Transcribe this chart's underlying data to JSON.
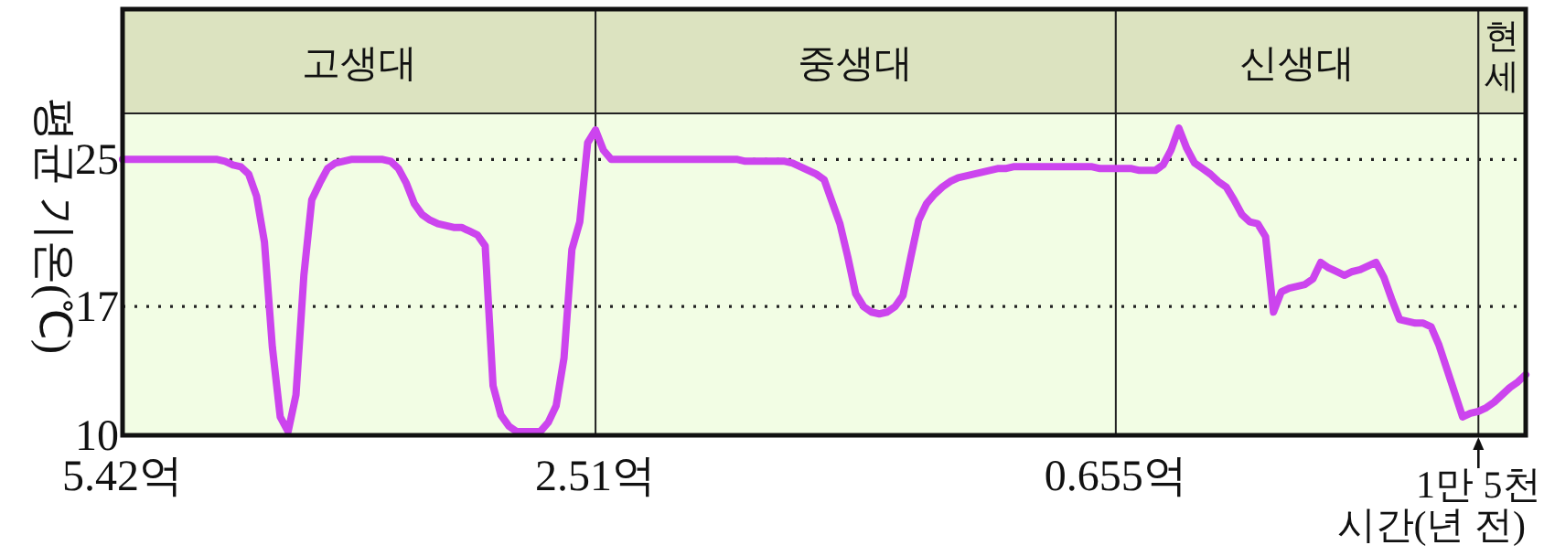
{
  "chart_data": {
    "type": "line",
    "ylabel": "평균 기온(℃)",
    "xlabel": "시간(년 전)",
    "annotations": [
      "고생대",
      "중생대",
      "신생대",
      "현세"
    ],
    "ylim": [
      10,
      27.5
    ],
    "yticks": [
      10,
      17,
      25
    ],
    "grid": "y",
    "line_style": "solid",
    "marker": "none",
    "categories": [
      "5.42억",
      null,
      null,
      null,
      null,
      null,
      null,
      null,
      null,
      null,
      null,
      null,
      null,
      null,
      null,
      null,
      null,
      null,
      null,
      null,
      null,
      null,
      null,
      null,
      null,
      null,
      null,
      null,
      null,
      null,
      null,
      null,
      null,
      null,
      null,
      null,
      null,
      null,
      null,
      null,
      null,
      null,
      null,
      null,
      null,
      null,
      null,
      null,
      null,
      null,
      null,
      null,
      null,
      null,
      null,
      null,
      null,
      null,
      null,
      null,
      "2.51억",
      null,
      null,
      null,
      null,
      null,
      null,
      null,
      null,
      null,
      null,
      null,
      null,
      null,
      null,
      null,
      null,
      null,
      null,
      null,
      null,
      null,
      null,
      null,
      null,
      null,
      null,
      null,
      null,
      null,
      null,
      null,
      null,
      null,
      null,
      null,
      null,
      null,
      null,
      null,
      null,
      null,
      null,
      null,
      null,
      null,
      null,
      null,
      null,
      null,
      null,
      null,
      null,
      null,
      null,
      null,
      null,
      null,
      null,
      null,
      null,
      null,
      null,
      null,
      null,
      null,
      "0.655억",
      null,
      null,
      null,
      null,
      null,
      null,
      null,
      null,
      null,
      null,
      null,
      null,
      null,
      null,
      null,
      null,
      null,
      null,
      null,
      null,
      null,
      null,
      null,
      null,
      null,
      null,
      null,
      null,
      null,
      null,
      null,
      null,
      null,
      null,
      null,
      null,
      null,
      null,
      null,
      null,
      null,
      null,
      null,
      null,
      null,
      "1만 5천",
      null,
      null,
      null,
      null,
      null,
      null
    ],
    "series": [
      {
        "color": "#cc44ee",
        "values": [
          25,
          25,
          25,
          25,
          25,
          25,
          25,
          25,
          25,
          25,
          25,
          25,
          25,
          24.9,
          24.7,
          24.6,
          24.2,
          23.0,
          20.5,
          14.8,
          11.0,
          10.2,
          12.2,
          18.7,
          22.8,
          23.7,
          24.5,
          24.8,
          24.9,
          25,
          25,
          25,
          25,
          25,
          24.9,
          24.5,
          23.7,
          22.6,
          22.0,
          21.7,
          21.5,
          21.4,
          21.3,
          21.3,
          21.1,
          20.9,
          20.3,
          12.7,
          11.1,
          10.5,
          10.2,
          10.2,
          10.2,
          10.2,
          10.7,
          11.6,
          14.2,
          20.1,
          21.6,
          25.9,
          26.6,
          25.5,
          25.0,
          25,
          25,
          25,
          25,
          25,
          25,
          25,
          25,
          25,
          25,
          25,
          25,
          25,
          25,
          25,
          25,
          24.9,
          24.9,
          24.9,
          24.9,
          24.9,
          24.9,
          24.8,
          24.6,
          24.4,
          24.2,
          23.9,
          22.7,
          21.5,
          19.7,
          17.7,
          17.0,
          16.7,
          16.6,
          16.7,
          17.0,
          17.6,
          19.7,
          21.7,
          22.6,
          23.1,
          23.5,
          23.8,
          24.0,
          24.1,
          24.2,
          24.3,
          24.4,
          24.5,
          24.5,
          24.6,
          24.6,
          24.6,
          24.6,
          24.6,
          24.6,
          24.6,
          24.6,
          24.6,
          24.6,
          24.6,
          24.5,
          24.5,
          24.5,
          24.5,
          24.5,
          24.4,
          24.4,
          24.4,
          24.7,
          25.5,
          26.7,
          25.6,
          24.8,
          24.5,
          24.2,
          23.8,
          23.5,
          22.8,
          22.0,
          21.6,
          21.5,
          20.8,
          16.7,
          17.8,
          18.0,
          18.1,
          18.2,
          18.5,
          19.4,
          19.1,
          18.9,
          18.7,
          18.9,
          19.0,
          19.2,
          19.4,
          18.6,
          17.4,
          16.3,
          16.2,
          16.1,
          16.1,
          15.9,
          14.9,
          13.6,
          12.3,
          11.0,
          11.2,
          11.3,
          11.5,
          11.8,
          12.2,
          12.6,
          12.9,
          13.3
        ]
      }
    ]
  }
}
